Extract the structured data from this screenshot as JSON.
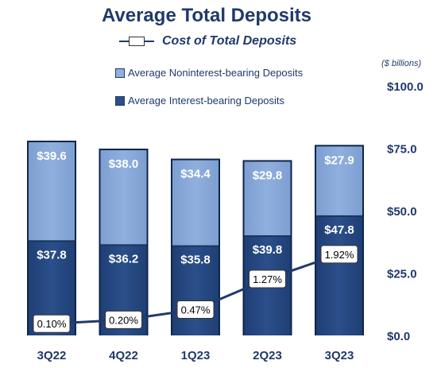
{
  "title": "Average Total Deposits",
  "legend": {
    "line_label": "Cost of Total Deposits",
    "noninterest_label": "Average Noninterest-bearing Deposits",
    "interest_label": "Average Interest-bearing Deposits"
  },
  "units": "($ billions)",
  "colors": {
    "noninterest": "#8fb0de",
    "interest": "#2b4f8a",
    "line": "#1f3a6b",
    "text": "#1f3a6b"
  },
  "chart_data": {
    "type": "bar",
    "stacked": true,
    "categories": [
      "3Q22",
      "4Q22",
      "1Q23",
      "2Q23",
      "3Q23"
    ],
    "series": [
      {
        "name": "Average Interest-bearing Deposits",
        "values": [
          37.8,
          36.2,
          35.8,
          39.8,
          47.8
        ],
        "labels": [
          "$37.8",
          "$36.2",
          "$35.8",
          "$39.8",
          "$47.8"
        ]
      },
      {
        "name": "Average Noninterest-bearing Deposits",
        "values": [
          39.6,
          38.0,
          34.4,
          29.8,
          27.9
        ],
        "labels": [
          "$39.6",
          "$38.0",
          "$34.4",
          "$29.8",
          "$27.9"
        ]
      }
    ],
    "line_series": {
      "name": "Cost of Total Deposits",
      "values": [
        0.1,
        0.2,
        0.47,
        1.27,
        1.92
      ],
      "labels": [
        "0.10%",
        "0.20%",
        "0.47%",
        "1.27%",
        "1.92%"
      ]
    },
    "y_axis": {
      "ticks": [
        "$0.0",
        "$25.0",
        "$50.0",
        "$75.0",
        "$100.0"
      ],
      "tick_values": [
        0,
        25,
        50,
        75,
        100
      ],
      "ylim": [
        0,
        100
      ],
      "position": "right"
    },
    "grid": false,
    "legend_position": "top-left"
  }
}
